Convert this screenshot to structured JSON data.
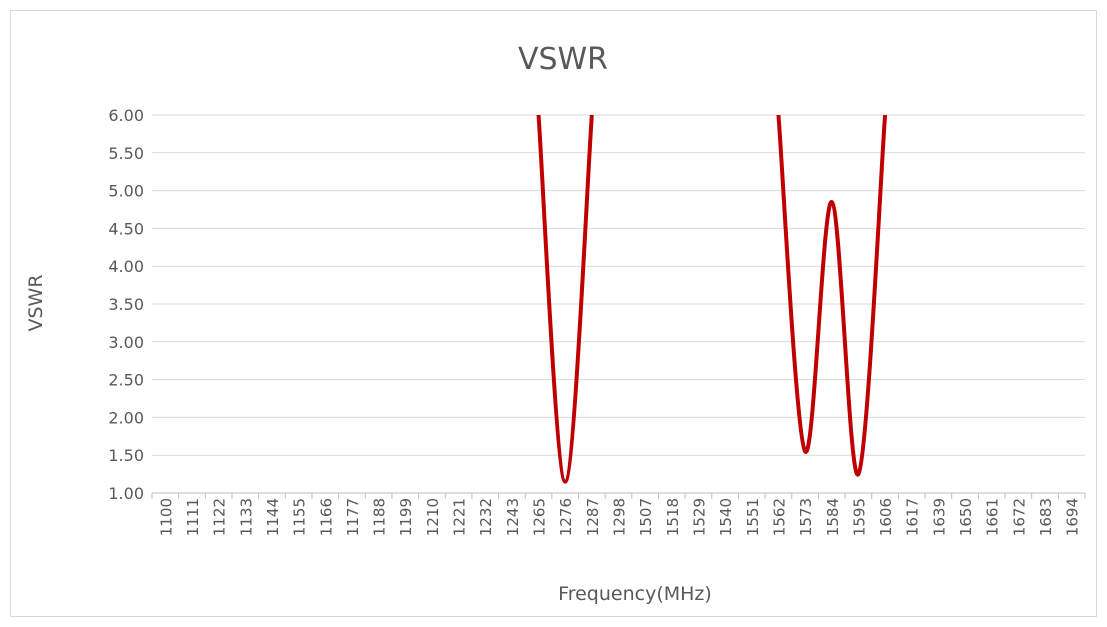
{
  "chart_data": {
    "type": "line",
    "title": "VSWR",
    "x_label": "Frequency(MHz)",
    "y_label": "VSWR",
    "categories": [
      "1100",
      "1111",
      "1122",
      "1133",
      "1144",
      "1155",
      "1166",
      "1177",
      "1188",
      "1199",
      "1210",
      "1221",
      "1232",
      "1243",
      "1265",
      "1276",
      "1287",
      "1298",
      "1507",
      "1518",
      "1529",
      "1540",
      "1551",
      "1562",
      "1573",
      "1584",
      "1595",
      "1606",
      "1617",
      "1639",
      "1650",
      "1661",
      "1672",
      "1683",
      "1694"
    ],
    "series": [
      {
        "name": "VSWR",
        "color": "#c00000",
        "values": [
          null,
          null,
          null,
          null,
          null,
          null,
          null,
          null,
          null,
          null,
          null,
          null,
          null,
          null,
          6.0,
          1.15,
          6.0,
          null,
          null,
          null,
          null,
          null,
          null,
          6.0,
          1.55,
          4.85,
          1.25,
          6.0,
          null,
          null,
          null,
          null,
          null,
          null,
          null
        ]
      }
    ],
    "ylim": [
      1,
      6
    ],
    "yticks": [
      {
        "value": 1,
        "label": "1.00"
      },
      {
        "value": 1.5,
        "label": "1.50"
      },
      {
        "value": 2,
        "label": "2.00"
      },
      {
        "value": 2.5,
        "label": "2.50"
      },
      {
        "value": 3,
        "label": "3.00"
      },
      {
        "value": 3.5,
        "label": "3.50"
      },
      {
        "value": 4,
        "label": "4.00"
      },
      {
        "value": 4.5,
        "label": "4.50"
      },
      {
        "value": 5,
        "label": "5.00"
      },
      {
        "value": 5.5,
        "label": "5.50"
      },
      {
        "value": 6,
        "label": "6.00"
      }
    ],
    "grid": true
  }
}
